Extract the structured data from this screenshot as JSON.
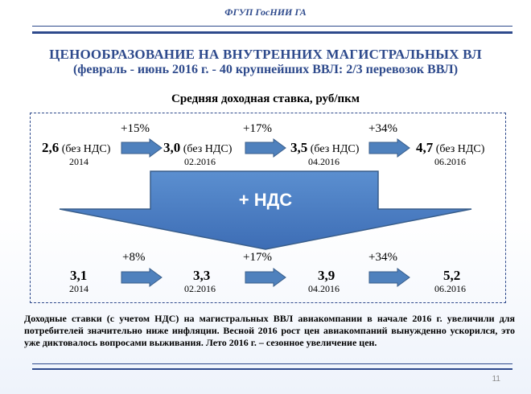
{
  "header": {
    "org": "ФГУП ГосНИИ ГА"
  },
  "title": {
    "line1": "ЦЕНООБРАЗОВАНИЕ НА ВНУТРЕННИХ МАГИСТРАЛЬНЫХ ВЛ",
    "line2": "(февраль - июнь 2016 г. - 40 крупнейших ВВЛ: 2/3 перевозок ВВЛ)"
  },
  "subtitle": "Средняя доходная ставка, руб/пкм",
  "top_row": {
    "items": [
      {
        "value": "2,6",
        "suffix": "(без НДС)",
        "date": "2014"
      },
      {
        "value": "3,0",
        "suffix": "(без НДС)",
        "date": "02.2016"
      },
      {
        "value": "3,5",
        "suffix": "(без НДС)",
        "date": "04.2016"
      },
      {
        "value": "4,7",
        "suffix": "(без НДС)",
        "date": "06.2016"
      }
    ],
    "changes": [
      "+15%",
      "+17%",
      "+34%"
    ]
  },
  "big_arrow": {
    "label": "+ НДС"
  },
  "bottom_row": {
    "items": [
      {
        "value": "3,1",
        "date": "2014"
      },
      {
        "value": "3,3",
        "date": "02.2016"
      },
      {
        "value": "3,9",
        "date": "04.2016"
      },
      {
        "value": "5,2",
        "date": "06.2016"
      }
    ],
    "changes": [
      "+8%",
      "+17%",
      "+34%"
    ]
  },
  "note": "Доходные ставки (с учетом НДС) на магистральных ВВЛ авиакомпании в начале 2016 г. увеличили для потребителей значительно ниже инфляции. Весной 2016 рост цен авиакомпаний вынужденно ускорился, это уже диктовалось вопросами выживания. Лето 2016 г. – сезонное увеличение цен.",
  "page_number": "11",
  "colors": {
    "accent": "#2e4a8c",
    "arrow_fill": "#4f81bd",
    "arrow_stroke": "#385d8a"
  }
}
